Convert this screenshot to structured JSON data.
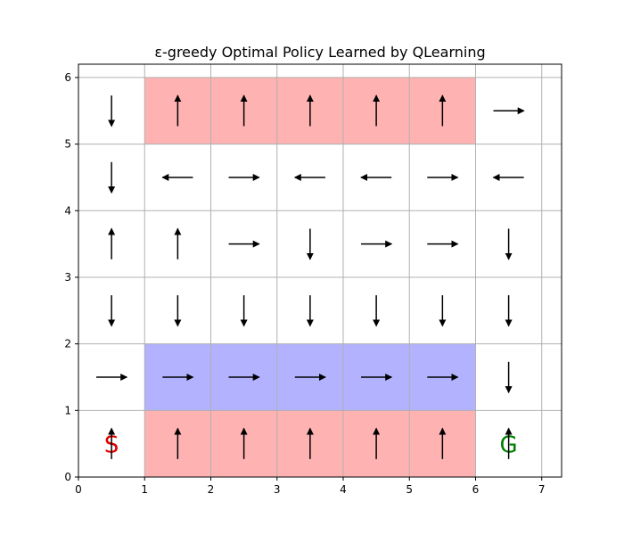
{
  "chart_data": {
    "type": "quiver",
    "title": "ε-greedy Optimal Policy Learned by QLearning",
    "xlim": [
      0,
      7.3
    ],
    "ylim": [
      0,
      6.2
    ],
    "xticks": [
      0,
      1,
      2,
      3,
      4,
      5,
      6,
      7
    ],
    "yticks": [
      0,
      1,
      2,
      3,
      4,
      5,
      6
    ],
    "grid": true,
    "regions": [
      {
        "name": "top-red-region",
        "x0": 1,
        "y0": 5,
        "x1": 6,
        "y1": 6,
        "color": "#ff7f7f"
      },
      {
        "name": "bottom-red-region",
        "x0": 1,
        "y0": 0,
        "x1": 6,
        "y1": 1,
        "color": "#ff7f7f"
      },
      {
        "name": "blue-region",
        "x0": 1,
        "y0": 1,
        "x1": 6,
        "y1": 2,
        "color": "#7f7fff"
      }
    ],
    "cell_labels": [
      {
        "text": "S",
        "x": 0.5,
        "y": 0.5,
        "color": "#e00000"
      },
      {
        "text": "G",
        "x": 6.5,
        "y": 0.5,
        "color": "#008000"
      }
    ],
    "arrows": [
      {
        "x": 0.5,
        "y": 0.5,
        "dir": "up"
      },
      {
        "x": 1.5,
        "y": 0.5,
        "dir": "up"
      },
      {
        "x": 2.5,
        "y": 0.5,
        "dir": "up"
      },
      {
        "x": 3.5,
        "y": 0.5,
        "dir": "up"
      },
      {
        "x": 4.5,
        "y": 0.5,
        "dir": "up"
      },
      {
        "x": 5.5,
        "y": 0.5,
        "dir": "up"
      },
      {
        "x": 6.5,
        "y": 0.5,
        "dir": "up"
      },
      {
        "x": 0.5,
        "y": 1.5,
        "dir": "right"
      },
      {
        "x": 1.5,
        "y": 1.5,
        "dir": "right"
      },
      {
        "x": 2.5,
        "y": 1.5,
        "dir": "right"
      },
      {
        "x": 3.5,
        "y": 1.5,
        "dir": "right"
      },
      {
        "x": 4.5,
        "y": 1.5,
        "dir": "right"
      },
      {
        "x": 5.5,
        "y": 1.5,
        "dir": "right"
      },
      {
        "x": 6.5,
        "y": 1.5,
        "dir": "down"
      },
      {
        "x": 0.5,
        "y": 2.5,
        "dir": "down"
      },
      {
        "x": 1.5,
        "y": 2.5,
        "dir": "down"
      },
      {
        "x": 2.5,
        "y": 2.5,
        "dir": "down"
      },
      {
        "x": 3.5,
        "y": 2.5,
        "dir": "down"
      },
      {
        "x": 4.5,
        "y": 2.5,
        "dir": "down"
      },
      {
        "x": 5.5,
        "y": 2.5,
        "dir": "down"
      },
      {
        "x": 6.5,
        "y": 2.5,
        "dir": "down"
      },
      {
        "x": 0.5,
        "y": 3.5,
        "dir": "up"
      },
      {
        "x": 1.5,
        "y": 3.5,
        "dir": "up"
      },
      {
        "x": 2.5,
        "y": 3.5,
        "dir": "right"
      },
      {
        "x": 3.5,
        "y": 3.5,
        "dir": "down"
      },
      {
        "x": 4.5,
        "y": 3.5,
        "dir": "right"
      },
      {
        "x": 5.5,
        "y": 3.5,
        "dir": "right"
      },
      {
        "x": 6.5,
        "y": 3.5,
        "dir": "down"
      },
      {
        "x": 0.5,
        "y": 4.5,
        "dir": "down"
      },
      {
        "x": 1.5,
        "y": 4.5,
        "dir": "left"
      },
      {
        "x": 2.5,
        "y": 4.5,
        "dir": "right"
      },
      {
        "x": 3.5,
        "y": 4.5,
        "dir": "left"
      },
      {
        "x": 4.5,
        "y": 4.5,
        "dir": "left"
      },
      {
        "x": 5.5,
        "y": 4.5,
        "dir": "right"
      },
      {
        "x": 6.5,
        "y": 4.5,
        "dir": "left"
      },
      {
        "x": 0.5,
        "y": 5.5,
        "dir": "down"
      },
      {
        "x": 1.5,
        "y": 5.5,
        "dir": "up"
      },
      {
        "x": 2.5,
        "y": 5.5,
        "dir": "up"
      },
      {
        "x": 3.5,
        "y": 5.5,
        "dir": "up"
      },
      {
        "x": 4.5,
        "y": 5.5,
        "dir": "up"
      },
      {
        "x": 5.5,
        "y": 5.5,
        "dir": "up"
      },
      {
        "x": 6.5,
        "y": 5.5,
        "dir": "right"
      }
    ]
  }
}
